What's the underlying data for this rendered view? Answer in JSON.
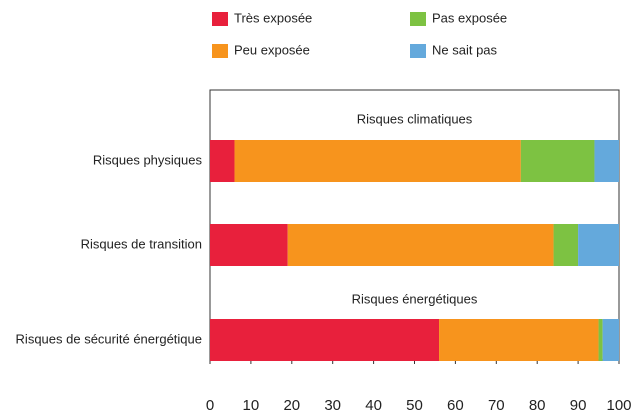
{
  "chart_data": {
    "type": "stacked-bar-horizontal",
    "categories": [
      "Risques physiques",
      "Risques de transition",
      "Risques de sécurité énergétique"
    ],
    "series": [
      {
        "name": "Très exposée",
        "color": "#e8203c",
        "values": [
          6,
          19,
          56
        ]
      },
      {
        "name": "Peu exposée",
        "color": "#f7941d",
        "values": [
          70,
          65,
          39
        ]
      },
      {
        "name": "Pas exposée",
        "color": "#7dc242",
        "values": [
          18,
          6,
          1
        ]
      },
      {
        "name": "Ne sait pas",
        "color": "#64a9dc",
        "values": [
          6,
          10,
          4
        ]
      }
    ],
    "annotations": [
      "Risques climatiques",
      "Risques énergétiques"
    ],
    "xlim": [
      0,
      100
    ],
    "xticks": [
      0,
      10,
      20,
      30,
      40,
      50,
      60,
      70,
      80,
      90,
      100
    ],
    "grid": false
  }
}
